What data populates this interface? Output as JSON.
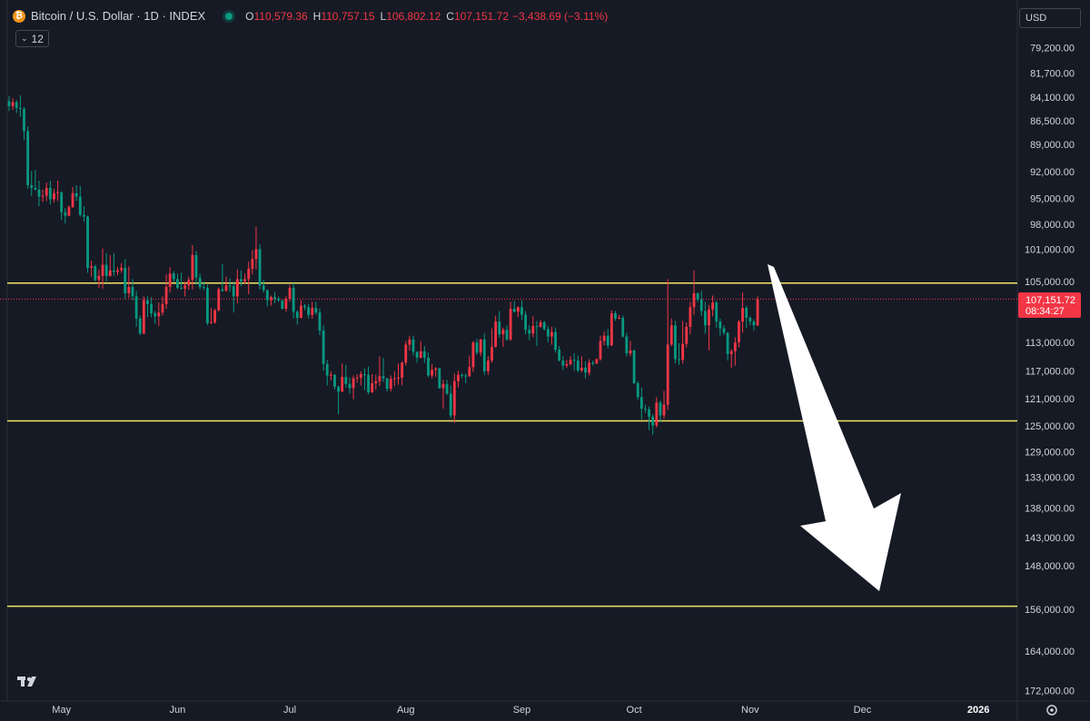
{
  "chart_data": {
    "type": "candlestick",
    "symbol": "Bitcoin / U.S. Dollar · 1D · INDEX",
    "ohlc_header": [
      {
        "key": "O",
        "value": "110,579.36"
      },
      {
        "key": "H",
        "value": "110,757.15"
      },
      {
        "key": "L",
        "value": "106,802.12"
      },
      {
        "key": "C",
        "value": "107,151.72"
      }
    ],
    "change": "−3,438.69 (−3.11%)",
    "indicator_count": "12",
    "currency": "USD",
    "last_price": {
      "value": 107151.72,
      "label": "107,151.72"
    },
    "countdown": "08:34:27",
    "log_scale": true,
    "inverted": true,
    "grid": false,
    "up_color": "#089981",
    "down_color": "#f23645",
    "level_color": "#f5e663",
    "levels": [
      105100,
      124100,
      155200
    ],
    "ylim": [
      74700,
      174000
    ],
    "yticks": [
      {
        "value": 79200,
        "label": "79,200.00"
      },
      {
        "value": 81700,
        "label": "81,700.00"
      },
      {
        "value": 84100,
        "label": "84,100.00"
      },
      {
        "value": 86500,
        "label": "86,500.00"
      },
      {
        "value": 89000,
        "label": "89,000.00"
      },
      {
        "value": 92000,
        "label": "92,000.00"
      },
      {
        "value": 95000,
        "label": "95,000.00"
      },
      {
        "value": 98000,
        "label": "98,000.00"
      },
      {
        "value": 101000,
        "label": "101,000.00"
      },
      {
        "value": 105000,
        "label": "105,000.00"
      },
      {
        "value": 113000,
        "label": "113,000.00"
      },
      {
        "value": 117000,
        "label": "117,000.00"
      },
      {
        "value": 121000,
        "label": "121,000.00"
      },
      {
        "value": 125000,
        "label": "125,000.00"
      },
      {
        "value": 129000,
        "label": "129,000.00"
      },
      {
        "value": 133000,
        "label": "133,000.00"
      },
      {
        "value": 138000,
        "label": "138,000.00"
      },
      {
        "value": 143000,
        "label": "143,000.00"
      },
      {
        "value": 148000,
        "label": "148,000.00"
      },
      {
        "value": 156000,
        "label": "156,000.00"
      },
      {
        "value": 164000,
        "label": "164,000.00"
      },
      {
        "value": 172000,
        "label": "172,000.00"
      }
    ],
    "xlim": [
      -2.43,
      269.4
    ],
    "xticks": [
      {
        "value": 14,
        "label": "May"
      },
      {
        "value": 45,
        "label": "Jun"
      },
      {
        "value": 75,
        "label": "Jul"
      },
      {
        "value": 106,
        "label": "Aug"
      },
      {
        "value": 137,
        "label": "Sep"
      },
      {
        "value": 167,
        "label": "Oct"
      },
      {
        "value": 198,
        "label": "Nov"
      },
      {
        "value": 228,
        "label": "Dec"
      },
      {
        "value": 259,
        "label": "2026"
      }
    ],
    "ohlc": [
      [
        84400,
        85400,
        83900,
        84900
      ],
      [
        84900,
        85300,
        84100,
        84500
      ],
      [
        84500,
        85600,
        84300,
        85100
      ],
      [
        85100,
        86000,
        83800,
        85200
      ],
      [
        85200,
        88400,
        85000,
        87500
      ],
      [
        87500,
        93800,
        87000,
        93400
      ],
      [
        93400,
        94600,
        91800,
        93700
      ],
      [
        93700,
        94000,
        91700,
        93900
      ],
      [
        93900,
        95800,
        92900,
        94700
      ],
      [
        94700,
        95300,
        93900,
        94600
      ],
      [
        94600,
        95200,
        93100,
        93700
      ],
      [
        93700,
        95600,
        92900,
        95000
      ],
      [
        95000,
        95400,
        93800,
        94300
      ],
      [
        94300,
        95200,
        92900,
        94200
      ],
      [
        94200,
        97400,
        94100,
        96500
      ],
      [
        96500,
        97800,
        96000,
        96900
      ],
      [
        96900,
        96950,
        95700,
        95900
      ],
      [
        95900,
        96000,
        93600,
        94300
      ],
      [
        94300,
        95200,
        93400,
        94700
      ],
      [
        94700,
        97000,
        93500,
        96800
      ],
      [
        96800,
        97600,
        95800,
        97000
      ],
      [
        97000,
        103800,
        96900,
        103200
      ],
      [
        103200,
        104300,
        102300,
        103000
      ],
      [
        103000,
        104900,
        102800,
        104700
      ],
      [
        104700,
        105700,
        103400,
        104200
      ],
      [
        104200,
        105800,
        100800,
        102800
      ],
      [
        102800,
        104900,
        101400,
        104200
      ],
      [
        104200,
        104300,
        101600,
        103500
      ],
      [
        103500,
        104200,
        101400,
        103700
      ],
      [
        103700,
        104100,
        103100,
        103500
      ],
      [
        103500,
        103800,
        102600,
        103200
      ],
      [
        103200,
        107100,
        102100,
        106400
      ],
      [
        106400,
        107000,
        103000,
        105600
      ],
      [
        105600,
        107300,
        104600,
        106800
      ],
      [
        106800,
        110800,
        106100,
        109700
      ],
      [
        109700,
        111900,
        109300,
        111700
      ],
      [
        111700,
        111800,
        106800,
        107300
      ],
      [
        107300,
        109500,
        106800,
        107800
      ],
      [
        107800,
        109500,
        106900,
        109000
      ],
      [
        109000,
        110400,
        108700,
        109400
      ],
      [
        109400,
        110700,
        107600,
        108900
      ],
      [
        108900,
        109300,
        106800,
        107800
      ],
      [
        107800,
        108400,
        104000,
        105600
      ],
      [
        105600,
        106300,
        103100,
        103900
      ],
      [
        103900,
        105000,
        103600,
        104600
      ],
      [
        104600,
        105900,
        103900,
        105700
      ],
      [
        105700,
        105900,
        103800,
        105800
      ],
      [
        105800,
        106800,
        104900,
        105400
      ],
      [
        105400,
        106000,
        104300,
        104700
      ],
      [
        104700,
        105900,
        100400,
        101600
      ],
      [
        101600,
        105300,
        101100,
        104400
      ],
      [
        104400,
        105900,
        103900,
        105600
      ],
      [
        105600,
        106000,
        104900,
        105700
      ],
      [
        105700,
        110600,
        105300,
        110300
      ],
      [
        110300,
        110400,
        108300,
        110200
      ],
      [
        110200,
        110400,
        108400,
        108600
      ],
      [
        108600,
        108800,
        105700,
        105900
      ],
      [
        105900,
        106200,
        102700,
        106100
      ],
      [
        106100,
        106200,
        104300,
        105400
      ],
      [
        105400,
        106200,
        104500,
        105500
      ],
      [
        105500,
        108900,
        104900,
        106800
      ],
      [
        106800,
        107700,
        103400,
        104600
      ],
      [
        104600,
        105500,
        103500,
        104900
      ],
      [
        104900,
        105200,
        103900,
        104600
      ],
      [
        104600,
        106500,
        102400,
        103300
      ],
      [
        103300,
        104000,
        101000,
        102100
      ],
      [
        102100,
        103400,
        98200,
        100900
      ],
      [
        100900,
        105900,
        100300,
        105400
      ],
      [
        105400,
        106300,
        104700,
        106000
      ],
      [
        106000,
        108100,
        105900,
        107300
      ],
      [
        107300,
        108000,
        106700,
        106900
      ],
      [
        106900,
        107700,
        106200,
        107100
      ],
      [
        107100,
        107500,
        106800,
        107300
      ],
      [
        107300,
        108500,
        107300,
        108400
      ],
      [
        108400,
        108800,
        106800,
        107100
      ],
      [
        107100,
        107500,
        105300,
        105700
      ],
      [
        105700,
        109700,
        105100,
        108800
      ],
      [
        108800,
        110500,
        108600,
        109600
      ],
      [
        109600,
        109700,
        107300,
        108000
      ],
      [
        108000,
        108600,
        107800,
        108200
      ],
      [
        108200,
        109700,
        107800,
        109200
      ],
      [
        109200,
        109700,
        107500,
        108300
      ],
      [
        108300,
        109200,
        107500,
        108900
      ],
      [
        108900,
        111900,
        108400,
        111300
      ],
      [
        111300,
        116800,
        110600,
        115900
      ],
      [
        115900,
        118900,
        115300,
        117500
      ],
      [
        117500,
        118200,
        116900,
        117400
      ],
      [
        117400,
        119500,
        117300,
        119100
      ],
      [
        119100,
        123100,
        118900,
        119800
      ],
      [
        119800,
        119900,
        115800,
        117700
      ],
      [
        117700,
        119200,
        116000,
        118700
      ],
      [
        118700,
        120100,
        117800,
        119300
      ],
      [
        119300,
        120900,
        117500,
        117900
      ],
      [
        117900,
        118500,
        117300,
        117800
      ],
      [
        117800,
        118900,
        116900,
        117300
      ],
      [
        117300,
        119600,
        116500,
        117400
      ],
      [
        117400,
        120200,
        116200,
        119900
      ],
      [
        119900,
        120000,
        117300,
        118600
      ],
      [
        118600,
        119500,
        117400,
        118300
      ],
      [
        118300,
        119000,
        114800,
        117600
      ],
      [
        117600,
        118400,
        115000,
        117900
      ],
      [
        117900,
        119800,
        117850,
        119400
      ],
      [
        119400,
        119800,
        117500,
        118000
      ],
      [
        118000,
        119000,
        116900,
        117900
      ],
      [
        117900,
        118800,
        115800,
        117800
      ],
      [
        117800,
        118900,
        115500,
        115700
      ],
      [
        115700,
        116100,
        112700,
        113200
      ],
      [
        113200,
        114000,
        112000,
        112500
      ],
      [
        112500,
        114700,
        112000,
        114200
      ],
      [
        114200,
        115700,
        114100,
        115000
      ],
      [
        115000,
        115100,
        112700,
        114100
      ],
      [
        114100,
        115700,
        113400,
        115000
      ],
      [
        115000,
        117700,
        114300,
        117500
      ],
      [
        117500,
        117900,
        115900,
        116700
      ],
      [
        116700,
        117700,
        116300,
        116500
      ],
      [
        116500,
        119400,
        116400,
        119300
      ],
      [
        119300,
        122300,
        118100,
        118700
      ],
      [
        118700,
        120300,
        118100,
        120100
      ],
      [
        120100,
        123700,
        118900,
        123300
      ],
      [
        123300,
        124400,
        117200,
        118300
      ],
      [
        118300,
        119200,
        116800,
        117400
      ],
      [
        117400,
        117900,
        117200,
        117500
      ],
      [
        117500,
        118600,
        117200,
        117600
      ],
      [
        117600,
        117700,
        114700,
        116300
      ],
      [
        116300,
        117000,
        112700,
        112900
      ],
      [
        112900,
        114600,
        112400,
        114300
      ],
      [
        114300,
        114800,
        112400,
        112500
      ],
      [
        112500,
        117400,
        111700,
        116900
      ],
      [
        116900,
        117400,
        114800,
        115400
      ],
      [
        115400,
        115700,
        111000,
        113500
      ],
      [
        113500,
        113600,
        109300,
        110100
      ],
      [
        110100,
        112300,
        108700,
        111800
      ],
      [
        111800,
        113500,
        110900,
        111200
      ],
      [
        111200,
        112700,
        110600,
        112500
      ],
      [
        112500,
        112700,
        107500,
        108400
      ],
      [
        108400,
        108900,
        107400,
        108800
      ],
      [
        108800,
        109500,
        108100,
        108200
      ],
      [
        108200,
        109900,
        107300,
        109200
      ],
      [
        109200,
        111800,
        108700,
        111200
      ],
      [
        111200,
        112600,
        110600,
        111700
      ],
      [
        111700,
        112200,
        109400,
        110700
      ],
      [
        110700,
        113400,
        110000,
        110800
      ],
      [
        110800,
        110900,
        109900,
        110200
      ],
      [
        110200,
        111300,
        110000,
        111100
      ],
      [
        111100,
        112900,
        110700,
        112100
      ],
      [
        112100,
        113200,
        110800,
        111500
      ],
      [
        111500,
        114300,
        110900,
        113900
      ],
      [
        113900,
        115500,
        113400,
        115400
      ],
      [
        115400,
        116700,
        114800,
        116100
      ],
      [
        116100,
        116400,
        115300,
        115900
      ],
      [
        115900,
        116100,
        114800,
        115300
      ],
      [
        115300,
        116800,
        114400,
        115400
      ],
      [
        115400,
        117000,
        114700,
        116800
      ],
      [
        116800,
        117000,
        114800,
        116400
      ],
      [
        116400,
        117900,
        115500,
        117100
      ],
      [
        117100,
        117500,
        115200,
        115700
      ],
      [
        115700,
        116100,
        115400,
        115800
      ],
      [
        115800,
        115900,
        115100,
        115200
      ],
      [
        115200,
        115400,
        112000,
        112700
      ],
      [
        112700,
        113300,
        111400,
        112000
      ],
      [
        112000,
        113700,
        111100,
        113300
      ],
      [
        113300,
        113400,
        108600,
        109000
      ],
      [
        109000,
        110000,
        108700,
        109700
      ],
      [
        109700,
        109800,
        109200,
        109600
      ],
      [
        109600,
        112300,
        109300,
        112100
      ],
      [
        112100,
        114800,
        111600,
        114400
      ],
      [
        114400,
        114800,
        112700,
        114000
      ],
      [
        114000,
        118700,
        113900,
        118600
      ],
      [
        118600,
        121000,
        118300,
        120600
      ],
      [
        120600,
        123900,
        119200,
        122300
      ],
      [
        122300,
        122900,
        121700,
        122400
      ],
      [
        122400,
        125500,
        122000,
        123500
      ],
      [
        123500,
        126200,
        123100,
        124800
      ],
      [
        124800,
        125100,
        120600,
        121400
      ],
      [
        121400,
        124200,
        121100,
        123300
      ],
      [
        123300,
        123800,
        119700,
        121700
      ],
      [
        121700,
        122500,
        104600,
        113200
      ],
      [
        113200,
        113400,
        109700,
        110600
      ],
      [
        110600,
        115800,
        110000,
        115200
      ],
      [
        115200,
        116000,
        113000,
        115300
      ],
      [
        115300,
        115800,
        110000,
        113100
      ],
      [
        113100,
        113600,
        110200,
        110800
      ],
      [
        110800,
        111800,
        107500,
        108200
      ],
      [
        108200,
        109200,
        103500,
        106400
      ],
      [
        106400,
        107500,
        106300,
        107200
      ],
      [
        107200,
        109400,
        106100,
        108700
      ],
      [
        108700,
        111700,
        107500,
        110600
      ],
      [
        110600,
        114000,
        107900,
        108500
      ],
      [
        108500,
        109400,
        106700,
        107600
      ],
      [
        107600,
        110900,
        107400,
        110100
      ],
      [
        110100,
        112000,
        109700,
        111000
      ],
      [
        111000,
        111900,
        110600,
        111600
      ],
      [
        111600,
        115400,
        111500,
        114500
      ],
      [
        114500,
        116400,
        113800,
        114100
      ],
      [
        114100,
        116100,
        112200,
        112900
      ],
      [
        112900,
        113600,
        109900,
        110100
      ],
      [
        110100,
        111600,
        106300,
        108300
      ],
      [
        108300,
        111000,
        108000,
        109600
      ],
      [
        109600,
        110600,
        109400,
        110100
      ],
      [
        110100,
        111300,
        109800,
        110600
      ],
      [
        110579.36,
        110757.15,
        106802.12,
        107151.72
      ]
    ]
  }
}
